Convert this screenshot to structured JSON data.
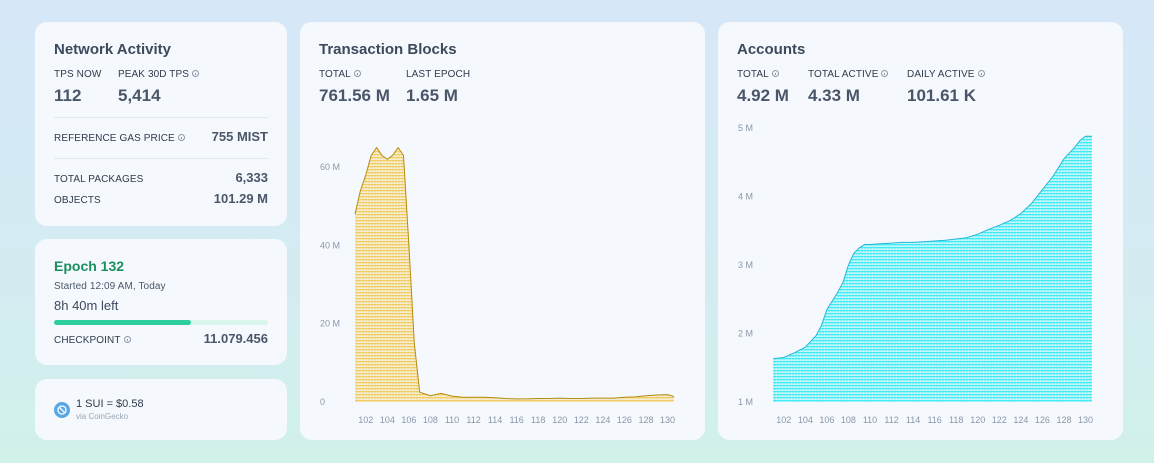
{
  "network": {
    "title": "Network Activity",
    "tps_now_label": "TPS NOW",
    "tps_now": "112",
    "peak_label": "PEAK 30D TPS",
    "peak": "5,414",
    "gas_label": "REFERENCE GAS PRICE",
    "gas_value": "755 MIST",
    "packages_label": "TOTAL PACKAGES",
    "packages_value": "6,333",
    "objects_label": "OBJECTS",
    "objects_value": "101.29 M"
  },
  "epoch": {
    "title": "Epoch 132",
    "started": "Started 12:09 AM, Today",
    "left": "8h 40m left",
    "progress": 0.64,
    "checkpoint_label": "CHECKPOINT",
    "checkpoint_value": "11.079.456",
    "accent": "#2fcf9d",
    "title_color": "#1a8f5e"
  },
  "price": {
    "text": "1 SUI = $0.58",
    "source": "via CoinGecko"
  },
  "tx": {
    "title": "Transaction Blocks",
    "total_label": "TOTAL",
    "total_value": "761.56 M",
    "last_label": "LAST EPOCH",
    "last_value": "1.65 M"
  },
  "accounts": {
    "title": "Accounts",
    "total_label": "TOTAL",
    "total_value": "4.92 M",
    "active_label": "TOTAL ACTIVE",
    "active_value": "4.33 M",
    "daily_label": "DAILY ACTIVE",
    "daily_value": "101.61 K"
  },
  "chart_data": [
    {
      "type": "area",
      "xlabel": "",
      "ylabel": "",
      "x": [
        101,
        101.5,
        102,
        102.5,
        103,
        103.5,
        104,
        104.5,
        105,
        105.5,
        106,
        106.5,
        107,
        108,
        109,
        110,
        111,
        112,
        113,
        114,
        115,
        116,
        117,
        118,
        119,
        120,
        121,
        122,
        123,
        124,
        125,
        126,
        127,
        128,
        129,
        130,
        130.6
      ],
      "y": [
        48,
        54,
        58,
        63,
        65,
        63,
        62,
        63,
        65,
        63,
        40,
        15,
        2.5,
        1.6,
        2.2,
        1.5,
        1.2,
        1.2,
        1.2,
        1.1,
        0.9,
        0.8,
        0.8,
        0.9,
        0.9,
        1.0,
        0.9,
        0.9,
        1.0,
        1.0,
        1.0,
        1.2,
        1.3,
        1.6,
        1.8,
        1.9,
        1.4
      ],
      "x_ticks": [
        "102",
        "104",
        "106",
        "108",
        "110",
        "112",
        "114",
        "116",
        "118",
        "120",
        "122",
        "124",
        "126",
        "128",
        "130"
      ],
      "y_ticks": [
        "0",
        "20 M",
        "40 M",
        "60 M"
      ],
      "ylim": [
        0,
        70
      ],
      "color": "#f0c23b",
      "line_color": "#b58a10"
    },
    {
      "type": "area",
      "xlabel": "",
      "ylabel": "",
      "x": [
        101,
        102,
        103,
        104,
        105,
        105.5,
        106,
        107,
        107.5,
        108,
        108.5,
        109,
        109.5,
        110,
        111,
        112,
        113,
        114,
        115,
        116,
        117,
        118,
        119,
        120,
        121,
        122,
        123,
        124,
        125,
        126,
        127,
        128,
        129,
        129.5,
        130,
        130.6
      ],
      "y": [
        1.63,
        1.65,
        1.72,
        1.8,
        1.97,
        2.12,
        2.35,
        2.6,
        2.75,
        3.0,
        3.17,
        3.25,
        3.3,
        3.3,
        3.31,
        3.32,
        3.33,
        3.33,
        3.34,
        3.35,
        3.36,
        3.38,
        3.4,
        3.45,
        3.52,
        3.58,
        3.65,
        3.75,
        3.9,
        4.1,
        4.3,
        4.55,
        4.72,
        4.82,
        4.88,
        4.88
      ],
      "x_ticks": [
        "102",
        "104",
        "106",
        "108",
        "110",
        "112",
        "114",
        "116",
        "118",
        "120",
        "122",
        "124",
        "126",
        "128",
        "130"
      ],
      "y_ticks": [
        "1 M",
        "2 M",
        "3 M",
        "4 M",
        "5 M"
      ],
      "ylim": [
        1,
        5
      ],
      "color": "#14e8f2",
      "line_color": "#20b8d8"
    }
  ]
}
